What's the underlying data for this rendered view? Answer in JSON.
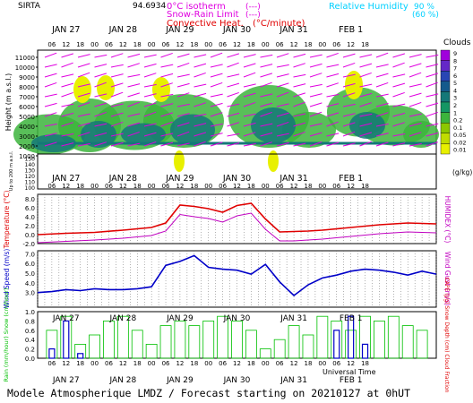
{
  "header": {
    "site": "SIRTA",
    "coords": "94.6934",
    "legend_isotherm": "0°C isotherm",
    "legend_isotherm_sym": "(---)",
    "legend_snowrain": "Snow-Rain Limit",
    "legend_snowrain_sym": "(---)",
    "legend_convective": "Convective Heat.",
    "legend_convective_unit": "(°C/minute)",
    "legend_rh": "Relative Humidity",
    "legend_rh_90": "90 %",
    "legend_rh_60": "(60 %)"
  },
  "footer": {
    "title": "Modele Atmospherique LMDZ / Forecast starting on 20210127 at 0hUT",
    "universal_time": "Universal Time"
  },
  "colors": {
    "clouds": [
      "#ffffff",
      "#e8f000",
      "#c0dc00",
      "#8cc800",
      "#3cb43c",
      "#149664",
      "#147878",
      "#145a8c",
      "#2846b4",
      "#6428c8",
      "#a000dc"
    ],
    "temperature": "#e00000",
    "humidex": "#c000c0",
    "wind": "#0000c8",
    "rain": "#00c000",
    "snow": "#0000c8",
    "rh": "#00e0ff",
    "wind_arrows": "#e000e0"
  },
  "chart_data": [
    {
      "type": "heatmap",
      "name": "clouds",
      "ylabel": "Height (m a.s.l.)",
      "ylabel_low": "Up to 200 m a.s.l.",
      "yticks": [
        "11000",
        "10000",
        "9000",
        "8000",
        "7000",
        "6000",
        "5000",
        "4000",
        "3000",
        "2000",
        "1000"
      ],
      "yticks_low": [
        "150",
        "140",
        "130",
        "120",
        "110",
        "100"
      ],
      "ylim": [
        0,
        11500
      ],
      "day_labels": [
        "JAN 27",
        "JAN 28",
        "JAN 29",
        "JAN 30",
        "JAN 31",
        "FEB 1"
      ],
      "hour_labels": [
        "06",
        "12",
        "18",
        "00",
        "06",
        "12",
        "18",
        "00",
        "06",
        "12",
        "18",
        "00",
        "06",
        "12",
        "18",
        "00",
        "06",
        "12",
        "18",
        "00",
        "06",
        "12",
        "18"
      ],
      "colorbar_title": "Clouds",
      "colorbar_ticks": [
        "9",
        "8",
        "7",
        "6",
        "5",
        "4",
        "3",
        "2",
        "1",
        "0.2",
        "0.1",
        "0.05",
        "0.02",
        "0.01"
      ],
      "colorbar_unit": "(g/kg)"
    },
    {
      "type": "line",
      "name": "temperature",
      "ylabel": "Temperature (°C)",
      "ylabel_right": "HUMIDEX (°C)",
      "yticks": [
        "8.0",
        "6.0",
        "4.0",
        "2.0",
        "0.0",
        "-2.0"
      ],
      "ylim": [
        -2,
        9
      ],
      "x_hours": [
        0,
        12,
        24,
        36,
        48,
        54,
        60,
        66,
        72,
        78,
        84,
        90,
        96,
        102,
        108,
        114,
        120,
        132,
        144,
        156,
        168
      ],
      "series": [
        {
          "name": "Temperature",
          "values": [
            0.0,
            0.3,
            0.5,
            1.0,
            1.6,
            2.6,
            6.6,
            6.3,
            5.8,
            5.0,
            6.5,
            7.0,
            3.5,
            0.6,
            0.7,
            0.8,
            1.0,
            1.6,
            2.2,
            2.6,
            2.4
          ]
        },
        {
          "name": "Humidex",
          "values": [
            -1.8,
            -1.5,
            -1.2,
            -0.8,
            -0.2,
            0.8,
            4.5,
            4.0,
            3.6,
            2.8,
            4.2,
            4.8,
            1.2,
            -1.4,
            -1.4,
            -1.2,
            -1.0,
            -0.4,
            0.2,
            0.6,
            0.4
          ]
        }
      ]
    },
    {
      "type": "line",
      "name": "wind",
      "ylabel": "Wind Speed (m/s)",
      "ylabel_right": "Wind Gust (m/s)",
      "yticks": [
        "7.0",
        "6.0",
        "5.0",
        "4.0",
        "3.0"
      ],
      "ylim": [
        1.5,
        7.3
      ],
      "x_hours": [
        0,
        6,
        12,
        18,
        24,
        30,
        36,
        42,
        48,
        54,
        60,
        66,
        72,
        78,
        84,
        90,
        96,
        102,
        108,
        114,
        120,
        126,
        132,
        138,
        144,
        150,
        156,
        162,
        168
      ],
      "series": [
        {
          "name": "Wind Speed",
          "values": [
            3.0,
            3.1,
            3.3,
            3.2,
            3.4,
            3.3,
            3.3,
            3.4,
            3.6,
            5.8,
            6.2,
            6.8,
            5.6,
            5.4,
            5.3,
            4.9,
            5.9,
            4.1,
            2.7,
            3.8,
            4.5,
            4.8,
            5.2,
            5.4,
            5.3,
            5.1,
            4.8,
            5.2,
            4.9
          ]
        }
      ]
    },
    {
      "type": "bar",
      "name": "precip",
      "ylabel": "Rain (mm/hour) Snow (cm/hour)",
      "ylabel_right": "CAPE (J/g) Snow Depth (cm) Cloud Fraction",
      "yticks": [
        "1.0",
        "0.8",
        "0.6",
        "0.4",
        "0.2",
        "0.0"
      ],
      "ylim": [
        0,
        1.0
      ],
      "x_hours": [
        6,
        12,
        18,
        24,
        30,
        36,
        42,
        48,
        54,
        60,
        66,
        72,
        78,
        84,
        90,
        96,
        102,
        108,
        114,
        120,
        126,
        132,
        138,
        144,
        150,
        156,
        162
      ],
      "series": [
        {
          "name": "Cloud Fraction",
          "values": [
            0.6,
            0.9,
            0.3,
            0.5,
            0.8,
            0.9,
            0.6,
            0.3,
            0.7,
            0.8,
            0.7,
            0.8,
            0.9,
            0.8,
            0.6,
            0.2,
            0.4,
            0.7,
            0.5,
            0.9,
            0.8,
            0.6,
            0.9,
            0.8,
            0.9,
            0.7,
            0.6
          ]
        },
        {
          "name": "Rain",
          "values": [
            0.2,
            0.8,
            0.1,
            0.0,
            0.0,
            0.0,
            0.0,
            0.0,
            0.0,
            0.0,
            0.0,
            0.0,
            0.0,
            0.0,
            0.0,
            0.0,
            0.0,
            0.0,
            0.0,
            0.0,
            0.6,
            0.9,
            0.3,
            0.0,
            0.0,
            0.0,
            0.0
          ]
        }
      ]
    }
  ]
}
